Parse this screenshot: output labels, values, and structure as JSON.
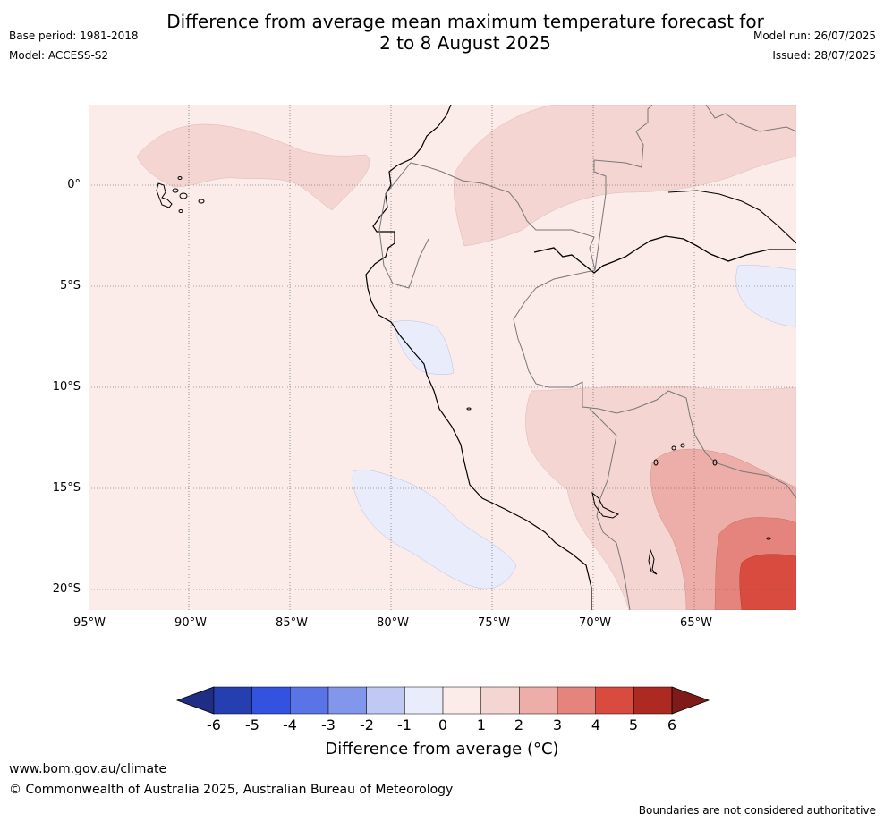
{
  "title_line1": "Difference from average mean maximum temperature forecast for",
  "title_line2": "2 to 8 August 2025",
  "base_period": "Base period: 1981-2018",
  "model": "Model: ACCESS-S2",
  "model_run": "Model run: 26/07/2025",
  "issued": "Issued: 28/07/2025",
  "lat_labels": [
    "0°",
    "5°S",
    "10°S",
    "15°S",
    "20°S"
  ],
  "lon_labels": [
    "95°W",
    "90°W",
    "85°W",
    "80°W",
    "75°W",
    "70°W",
    "65°W"
  ],
  "colorbar": {
    "ticks": [
      "-6",
      "-5",
      "-4",
      "-3",
      "-2",
      "-1",
      "0",
      "1",
      "2",
      "3",
      "4",
      "5",
      "6"
    ],
    "colors": [
      "#1f2e84",
      "#263fb0",
      "#3352e0",
      "#5a73e6",
      "#8296eb",
      "#c0c9f4",
      "#e9ecfb",
      "#fbebe9",
      "#f5d5d2",
      "#edaea9",
      "#e5847d",
      "#d94b3f",
      "#ad2a22",
      "#7e1b18"
    ],
    "title": "Difference from average (°C)"
  },
  "footer_url": "www.bom.gov.au/climate",
  "footer_copyright": "© Commonwealth of Australia 2025, Australian Bureau of Meteorology",
  "footer_disclaimer": "Boundaries are not considered authoritative"
}
